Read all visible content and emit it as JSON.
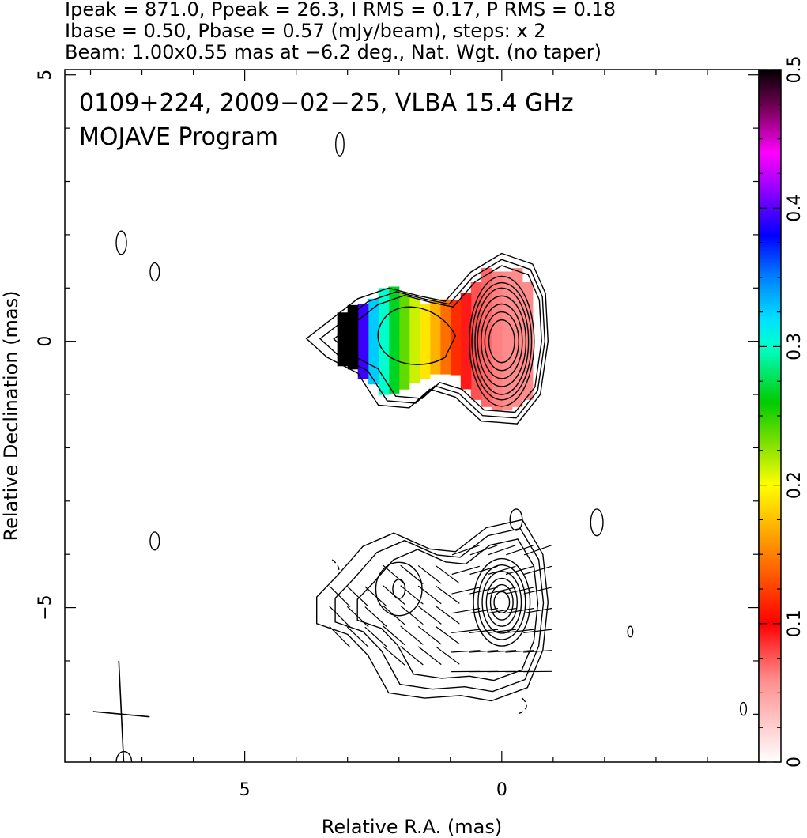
{
  "header": {
    "line1": "Ipeak = 871.0, Ppeak = 26.3, I RMS = 0.17, P RMS = 0.18",
    "line2": "Ibase = 0.50, Pbase = 0.57 (mJy/beam), steps: x 2",
    "line3": "Beam: 1.00x0.55 mas at −6.2 deg., Nat. Wgt. (no taper)"
  },
  "annotation": {
    "line1": "0109+224, 2009−02−25, VLBA 15.4 GHz",
    "line2": "MOJAVE Program"
  },
  "chart_data": {
    "type": "heatmap",
    "xlabel": "Relative R.A. (mas)",
    "ylabel": "Relative Declination (mas)",
    "xlim": [
      8.5,
      -5.0
    ],
    "ylim": [
      -7.9,
      5.1
    ],
    "x_reversed": true,
    "x_ticks": [
      5,
      0
    ],
    "x_tick_labels": [
      "5",
      "0"
    ],
    "y_ticks": [
      5,
      0,
      -5
    ],
    "y_tick_labels": [
      "5",
      "0",
      "−5"
    ],
    "colorbar": {
      "min": 0,
      "max": 0.5,
      "ticks": [
        0,
        0.1,
        0.2,
        0.3,
        0.4,
        0.5
      ],
      "tick_labels": [
        "0",
        "0.1",
        "0.2",
        "0.3",
        "0.4",
        "0.5"
      ]
    },
    "upper_panel": {
      "description_values": "fractional polarization along jet",
      "core_ra": 0.0,
      "core_dec": 0.0,
      "profile": [
        {
          "ra": 0.0,
          "value": 0.06
        },
        {
          "ra": 0.6,
          "value": 0.08
        },
        {
          "ra": 1.0,
          "value": 0.13
        },
        {
          "ra": 1.3,
          "value": 0.17
        },
        {
          "ra": 1.6,
          "value": 0.2
        },
        {
          "ra": 2.0,
          "value": 0.25
        },
        {
          "ra": 2.3,
          "value": 0.3
        },
        {
          "ra": 2.6,
          "value": 0.34
        },
        {
          "ra": 2.9,
          "value": 0.5
        },
        {
          "ra": 3.2,
          "value": 0.5
        }
      ]
    },
    "lower_panel": {
      "core_ra": 0.0,
      "core_dec": -5.0,
      "components": [
        {
          "ra": 0.0,
          "dec": -4.9
        },
        {
          "ra": 2.0,
          "dec": -4.65
        }
      ]
    }
  }
}
